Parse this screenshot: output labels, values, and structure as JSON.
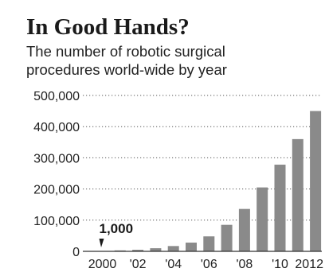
{
  "chart_data": {
    "type": "bar",
    "title": "In Good Hands?",
    "subtitle_lines": [
      "The number of robotic surgical",
      "procedures world-wide by year"
    ],
    "years": [
      2000,
      2001,
      2002,
      2003,
      2004,
      2005,
      2006,
      2007,
      2008,
      2009,
      2010,
      2011,
      2012
    ],
    "values": [
      1000,
      3000,
      5000,
      10000,
      17000,
      28000,
      48000,
      85000,
      136000,
      205000,
      278000,
      360000,
      450000
    ],
    "x_tick_labels": [
      {
        "year": 2000,
        "label": "2000"
      },
      {
        "year": 2002,
        "label": "'02"
      },
      {
        "year": 2004,
        "label": "'04"
      },
      {
        "year": 2006,
        "label": "'06"
      },
      {
        "year": 2008,
        "label": "'08"
      },
      {
        "year": 2010,
        "label": "'10"
      },
      {
        "year": 2012,
        "label": "2012"
      }
    ],
    "y_ticks": [
      0,
      100000,
      200000,
      300000,
      400000,
      500000
    ],
    "y_tick_labels": [
      "0",
      "100,000",
      "200,000",
      "300,000",
      "400,000",
      "500,000"
    ],
    "ylim": [
      0,
      500000
    ],
    "annotation": {
      "text": "1,000",
      "year": 2000
    },
    "grid": true,
    "bar_color": "#8a8a8a"
  }
}
